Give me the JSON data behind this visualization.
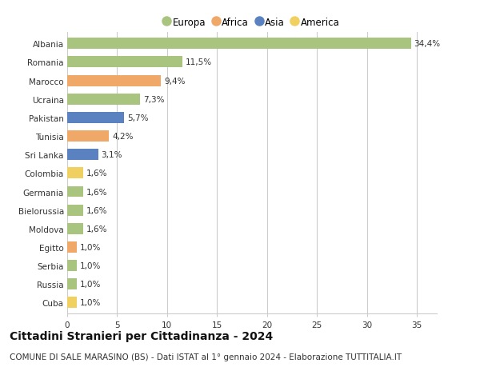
{
  "countries": [
    "Albania",
    "Romania",
    "Marocco",
    "Ucraina",
    "Pakistan",
    "Tunisia",
    "Sri Lanka",
    "Colombia",
    "Germania",
    "Bielorussia",
    "Moldova",
    "Egitto",
    "Serbia",
    "Russia",
    "Cuba"
  ],
  "values": [
    34.4,
    11.5,
    9.4,
    7.3,
    5.7,
    4.2,
    3.1,
    1.6,
    1.6,
    1.6,
    1.6,
    1.0,
    1.0,
    1.0,
    1.0
  ],
  "labels": [
    "34,4%",
    "11,5%",
    "9,4%",
    "7,3%",
    "5,7%",
    "4,2%",
    "3,1%",
    "1,6%",
    "1,6%",
    "1,6%",
    "1,6%",
    "1,0%",
    "1,0%",
    "1,0%",
    "1,0%"
  ],
  "continents": [
    "Europa",
    "Europa",
    "Africa",
    "Europa",
    "Asia",
    "Africa",
    "Asia",
    "America",
    "Europa",
    "Europa",
    "Europa",
    "Africa",
    "Europa",
    "Europa",
    "America"
  ],
  "colors": {
    "Europa": "#a8c47e",
    "Africa": "#f0a868",
    "Asia": "#5b82c0",
    "America": "#f0d060"
  },
  "legend_order": [
    "Europa",
    "Africa",
    "Asia",
    "America"
  ],
  "title": "Cittadini Stranieri per Cittadinanza - 2024",
  "subtitle": "COMUNE DI SALE MARASINO (BS) - Dati ISTAT al 1° gennaio 2024 - Elaborazione TUTTITALIA.IT",
  "xlim": [
    0,
    37
  ],
  "xticks": [
    0,
    5,
    10,
    15,
    20,
    25,
    30,
    35
  ],
  "background_color": "#ffffff",
  "grid_color": "#cccccc",
  "bar_height": 0.6,
  "title_fontsize": 10,
  "subtitle_fontsize": 7.5,
  "label_fontsize": 7.5,
  "tick_fontsize": 7.5,
  "legend_fontsize": 8.5
}
